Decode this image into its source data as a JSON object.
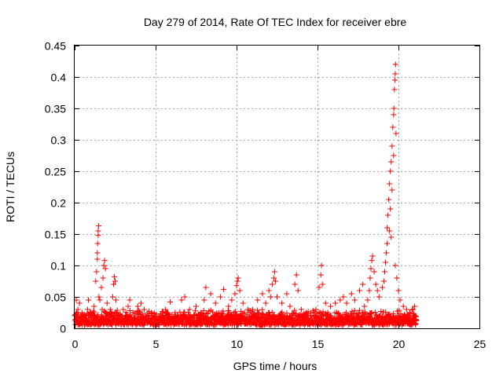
{
  "chart_data": {
    "type": "scatter",
    "title": "Day 279 of 2014, Rate Of TEC Index for receiver ebre",
    "xlabel": "GPS time / hours",
    "ylabel": "ROTI / TECUs",
    "xlim": [
      0,
      25
    ],
    "ylim": [
      0,
      0.45
    ],
    "x_ticks": [
      0,
      5,
      10,
      15,
      20,
      25
    ],
    "x_tick_labels": [
      "0",
      "5",
      "10",
      "15",
      "20",
      "25"
    ],
    "y_ticks": [
      0,
      0.05,
      0.1,
      0.15,
      0.2,
      0.25,
      0.3,
      0.35,
      0.4,
      0.45
    ],
    "y_tick_labels": [
      "0",
      "0.05",
      "0.1",
      "0.15",
      "0.2",
      "0.25",
      "0.3",
      "0.35",
      "0.4",
      "0.45"
    ],
    "grid": true,
    "marker": "+",
    "color": "#ff0000",
    "series": [
      {
        "points": [
          [
            0.05,
            0.02
          ],
          [
            0.1,
            0.045
          ],
          [
            0.2,
            0.03
          ],
          [
            0.3,
            0.04
          ],
          [
            0.45,
            0.025
          ],
          [
            0.6,
            0.015
          ],
          [
            0.8,
            0.03
          ],
          [
            0.85,
            0.045
          ],
          [
            1.0,
            0.02
          ],
          [
            1.2,
            0.035
          ],
          [
            1.3,
            0.075
          ],
          [
            1.35,
            0.09
          ],
          [
            1.4,
            0.11
          ],
          [
            1.4,
            0.12
          ],
          [
            1.42,
            0.135
          ],
          [
            1.45,
            0.148
          ],
          [
            1.45,
            0.155
          ],
          [
            1.48,
            0.163
          ],
          [
            1.5,
            0.05
          ],
          [
            1.55,
            0.045
          ],
          [
            1.65,
            0.065
          ],
          [
            1.7,
            0.03
          ],
          [
            1.75,
            0.08
          ],
          [
            1.8,
            0.1
          ],
          [
            1.85,
            0.108
          ],
          [
            1.9,
            0.095
          ],
          [
            2.0,
            0.04
          ],
          [
            2.2,
            0.03
          ],
          [
            2.35,
            0.05
          ],
          [
            2.4,
            0.07
          ],
          [
            2.45,
            0.082
          ],
          [
            2.5,
            0.075
          ],
          [
            2.55,
            0.045
          ],
          [
            2.7,
            0.02
          ],
          [
            3.0,
            0.03
          ],
          [
            3.3,
            0.035
          ],
          [
            3.4,
            0.045
          ],
          [
            3.6,
            0.025
          ],
          [
            3.9,
            0.035
          ],
          [
            4.1,
            0.04
          ],
          [
            4.3,
            0.03
          ],
          [
            4.6,
            0.02
          ],
          [
            5.0,
            0.015
          ],
          [
            5.3,
            0.02
          ],
          [
            5.6,
            0.03
          ],
          [
            5.9,
            0.042
          ],
          [
            6.2,
            0.025
          ],
          [
            6.6,
            0.045
          ],
          [
            6.8,
            0.05
          ],
          [
            7.1,
            0.03
          ],
          [
            7.5,
            0.035
          ],
          [
            7.8,
            0.025
          ],
          [
            8.0,
            0.045
          ],
          [
            8.1,
            0.065
          ],
          [
            8.4,
            0.055
          ],
          [
            8.7,
            0.04
          ],
          [
            9.0,
            0.05
          ],
          [
            9.2,
            0.062
          ],
          [
            9.5,
            0.035
          ],
          [
            9.7,
            0.045
          ],
          [
            9.9,
            0.055
          ],
          [
            10.0,
            0.068
          ],
          [
            10.05,
            0.075
          ],
          [
            10.1,
            0.08
          ],
          [
            10.2,
            0.06
          ],
          [
            10.4,
            0.04
          ],
          [
            10.7,
            0.03
          ],
          [
            11.0,
            0.03
          ],
          [
            11.3,
            0.045
          ],
          [
            11.6,
            0.055
          ],
          [
            11.8,
            0.04
          ],
          [
            12.0,
            0.06
          ],
          [
            12.1,
            0.05
          ],
          [
            12.2,
            0.07
          ],
          [
            12.3,
            0.08
          ],
          [
            12.35,
            0.09
          ],
          [
            12.4,
            0.075
          ],
          [
            12.5,
            0.05
          ],
          [
            12.8,
            0.04
          ],
          [
            13.1,
            0.055
          ],
          [
            13.3,
            0.035
          ],
          [
            13.6,
            0.07
          ],
          [
            13.7,
            0.085
          ],
          [
            13.8,
            0.06
          ],
          [
            14.0,
            0.03
          ],
          [
            14.3,
            0.025
          ],
          [
            14.6,
            0.02
          ],
          [
            14.9,
            0.03
          ],
          [
            15.1,
            0.065
          ],
          [
            15.2,
            0.085
          ],
          [
            15.25,
            0.1
          ],
          [
            15.3,
            0.07
          ],
          [
            15.5,
            0.04
          ],
          [
            15.8,
            0.035
          ],
          [
            16.1,
            0.04
          ],
          [
            16.4,
            0.045
          ],
          [
            16.6,
            0.05
          ],
          [
            16.8,
            0.04
          ],
          [
            17.1,
            0.055
          ],
          [
            17.3,
            0.045
          ],
          [
            17.6,
            0.06
          ],
          [
            17.8,
            0.07
          ],
          [
            17.9,
            0.035
          ],
          [
            18.1,
            0.045
          ],
          [
            18.2,
            0.06
          ],
          [
            18.25,
            0.08
          ],
          [
            18.3,
            0.095
          ],
          [
            18.35,
            0.108
          ],
          [
            18.4,
            0.115
          ],
          [
            18.5,
            0.09
          ],
          [
            18.6,
            0.07
          ],
          [
            18.7,
            0.06
          ],
          [
            18.8,
            0.05
          ],
          [
            19.0,
            0.065
          ],
          [
            19.1,
            0.075
          ],
          [
            19.15,
            0.09
          ],
          [
            19.2,
            0.105
          ],
          [
            19.25,
            0.12
          ],
          [
            19.3,
            0.135
          ],
          [
            19.3,
            0.16
          ],
          [
            19.35,
            0.18
          ],
          [
            19.4,
            0.205
          ],
          [
            19.45,
            0.23
          ],
          [
            19.5,
            0.25
          ],
          [
            19.55,
            0.265
          ],
          [
            19.6,
            0.29
          ],
          [
            19.65,
            0.32
          ],
          [
            19.7,
            0.34
          ],
          [
            19.72,
            0.35
          ],
          [
            19.75,
            0.38
          ],
          [
            19.78,
            0.395
          ],
          [
            19.8,
            0.405
          ],
          [
            19.82,
            0.42
          ],
          [
            19.85,
            0.31
          ],
          [
            19.7,
            0.275
          ],
          [
            19.6,
            0.22
          ],
          [
            19.5,
            0.19
          ],
          [
            19.45,
            0.155
          ],
          [
            19.55,
            0.145
          ],
          [
            19.8,
            0.1
          ],
          [
            19.9,
            0.08
          ],
          [
            20.0,
            0.06
          ],
          [
            20.1,
            0.045
          ],
          [
            20.3,
            0.035
          ],
          [
            20.5,
            0.03
          ],
          [
            20.7,
            0.025
          ],
          [
            20.9,
            0.03
          ],
          [
            21.0,
            0.035
          ],
          [
            21.05,
            0.02
          ],
          [
            21.1,
            0.012
          ]
        ]
      }
    ],
    "dense_band": {
      "x_start": 0,
      "x_end": 21.1,
      "y_min": 0.005,
      "y_max": 0.03
    }
  }
}
